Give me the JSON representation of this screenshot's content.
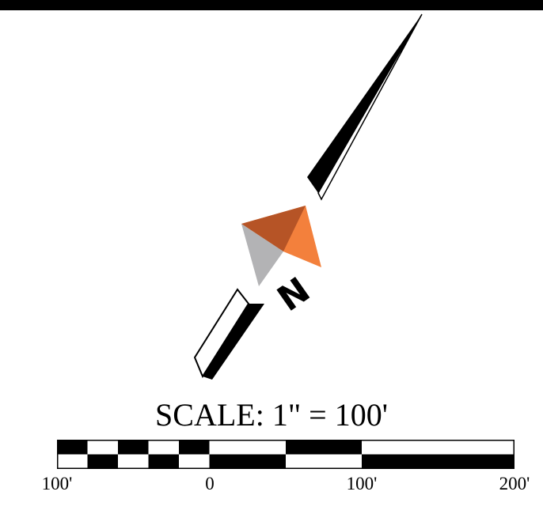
{
  "map": {
    "north_arrow": {
      "letter": "N",
      "icon": "north-arrow-icon",
      "colors": {
        "dark_orange": "#b65426",
        "light_orange": "#f3803c",
        "gray": "#b3b3b5",
        "ink": "#000000"
      }
    },
    "scale": {
      "title": "SCALE: 1\" = 100'",
      "labels": [
        "100'",
        "0",
        "100'",
        "200'"
      ],
      "colors": {
        "ink": "#000000",
        "paper": "#ffffff"
      }
    }
  }
}
